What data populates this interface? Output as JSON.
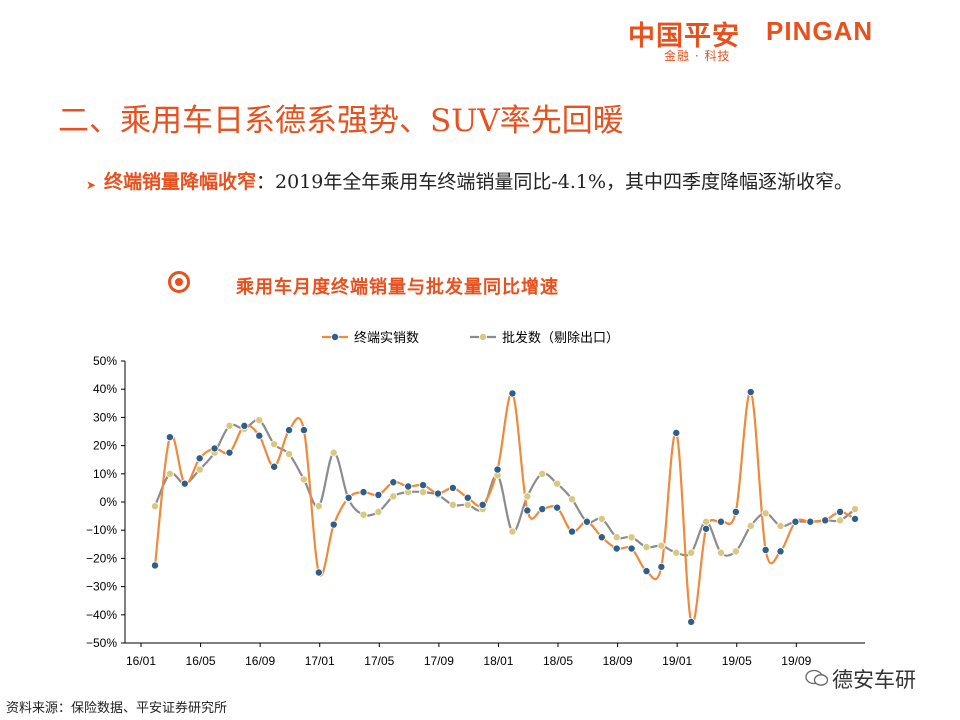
{
  "header": {
    "logo_cn": "中国平安",
    "logo_en": "PINGAN",
    "logo_sub": "金融 · 科技"
  },
  "slide": {
    "title": "二、乘用车日系德系强势、SUV率先回暖",
    "bullet_highlight": "终端销量降幅收窄",
    "bullet_text": "：2019年全年乘用车终端销量同比-4.1%，其中四季度降幅逐渐收窄。"
  },
  "chart_title": "乘用车月度终端销量与批发量同比增速",
  "source": "资料来源：保险数据、平安证券研究所",
  "watermark": "德安车研",
  "colors": {
    "accent": "#e8501e",
    "series1": "#f08a3a",
    "series2": "#8c8c8c"
  },
  "chart_data": {
    "type": "line",
    "x": [
      "16/01",
      "16/02",
      "16/03",
      "16/04",
      "16/05",
      "16/06",
      "16/07",
      "16/08",
      "16/09",
      "16/10",
      "16/11",
      "16/12",
      "17/01",
      "17/02",
      "17/03",
      "17/04",
      "17/05",
      "17/06",
      "17/07",
      "17/08",
      "17/09",
      "17/10",
      "17/11",
      "17/12",
      "18/01",
      "18/02",
      "18/03",
      "18/04",
      "18/05",
      "18/06",
      "18/07",
      "18/08",
      "18/09",
      "18/10",
      "18/11",
      "18/12",
      "19/01",
      "19/02",
      "19/03",
      "19/04",
      "19/05",
      "19/06",
      "19/07",
      "19/08",
      "19/09",
      "19/10",
      "19/11",
      "19/12"
    ],
    "xticks": [
      "16/01",
      "16/05",
      "16/09",
      "17/01",
      "17/05",
      "17/09",
      "18/01",
      "18/05",
      "18/09",
      "19/01",
      "19/05",
      "19/09"
    ],
    "yticks": [
      "50%",
      "40%",
      "30%",
      "20%",
      "10%",
      "0%",
      "−10%",
      "−20%",
      "−30%",
      "−40%",
      "−50%"
    ],
    "ylim": [
      -50,
      50
    ],
    "series": [
      {
        "name": "终端实销数",
        "values": [
          -22.5,
          23,
          6.5,
          15.5,
          19,
          17.5,
          27,
          23.5,
          12.5,
          25.5,
          25.5,
          -25,
          -8,
          1.5,
          3.5,
          2.5,
          7,
          5.5,
          6,
          3,
          5,
          1.5,
          -1,
          11.5,
          38.5,
          -3,
          -2.5,
          -2,
          -10.5,
          -7,
          -12.5,
          -16.5,
          -16.5,
          -24.5,
          -23,
          24.5,
          -42.5,
          -9.5,
          -7,
          -3.5,
          39,
          -17,
          -17.5,
          -7,
          -7,
          -6.5,
          -3.5,
          -6
        ]
      },
      {
        "name": "批发数（剔除出口）",
        "values": [
          -1.5,
          10,
          6.5,
          11.5,
          17.5,
          27,
          26,
          29,
          20.5,
          17,
          8,
          -1.5,
          17.5,
          1,
          -4.5,
          -3.5,
          2,
          3.5,
          3.5,
          2.5,
          -1,
          -1,
          -2.5,
          9.5,
          -10.5,
          2,
          10,
          6.5,
          1,
          -7,
          -6,
          -12.5,
          -12.5,
          -16,
          -15.5,
          -18,
          -18,
          -7,
          -18,
          -17.5,
          -8.5,
          -4,
          -8.5,
          -7,
          -7,
          -6.5,
          -6.5,
          -2.5
        ]
      }
    ]
  }
}
